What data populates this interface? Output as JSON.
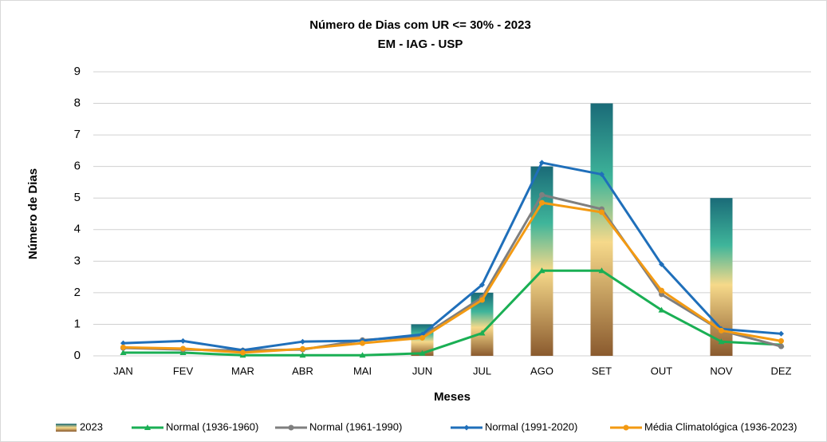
{
  "chart_data": {
    "type": "combo",
    "title": "Número de Dias com UR <= 30% - 2023",
    "subtitle": "EM - IAG - USP",
    "xlabel": "Meses",
    "ylabel": "Número de Dias",
    "categories": [
      "JAN",
      "FEV",
      "MAR",
      "ABR",
      "MAI",
      "JUN",
      "JUL",
      "AGO",
      "SET",
      "OUT",
      "NOV",
      "DEZ"
    ],
    "ylim": [
      0,
      9
    ],
    "yticks": [
      0,
      1,
      2,
      3,
      4,
      5,
      6,
      7,
      8,
      9
    ],
    "grid": true,
    "legend": "bottom",
    "series": [
      {
        "name": "2023",
        "type": "bar",
        "color": "#2a8a7e",
        "values": [
          0,
          0,
          0,
          0,
          0,
          1,
          2,
          6,
          8,
          0,
          5,
          0
        ]
      },
      {
        "name": "Normal (1936-1960)",
        "type": "line",
        "marker": "triangle",
        "color": "#1aaf54",
        "values": [
          0.1,
          0.1,
          0.02,
          0.02,
          0.02,
          0.08,
          0.72,
          2.7,
          2.7,
          1.45,
          0.45,
          0.35
        ]
      },
      {
        "name": "Normal (1961-1990)",
        "type": "line",
        "marker": "circle",
        "color": "#7f7f7f",
        "values": [
          0.25,
          0.2,
          0.17,
          0.2,
          0.5,
          0.62,
          1.85,
          5.1,
          4.65,
          1.95,
          0.8,
          0.3
        ]
      },
      {
        "name": "Normal (1991-2020)",
        "type": "line",
        "marker": "diamond",
        "color": "#1f6fba",
        "values": [
          0.4,
          0.47,
          0.18,
          0.45,
          0.48,
          0.68,
          2.25,
          6.12,
          5.75,
          2.9,
          0.85,
          0.7
        ]
      },
      {
        "name": "Média Climatológica (1936-2023)",
        "type": "line",
        "marker": "circle",
        "color": "#f39a12",
        "values": [
          0.27,
          0.23,
          0.1,
          0.22,
          0.4,
          0.57,
          1.77,
          4.85,
          4.55,
          2.07,
          0.8,
          0.47
        ]
      }
    ]
  }
}
